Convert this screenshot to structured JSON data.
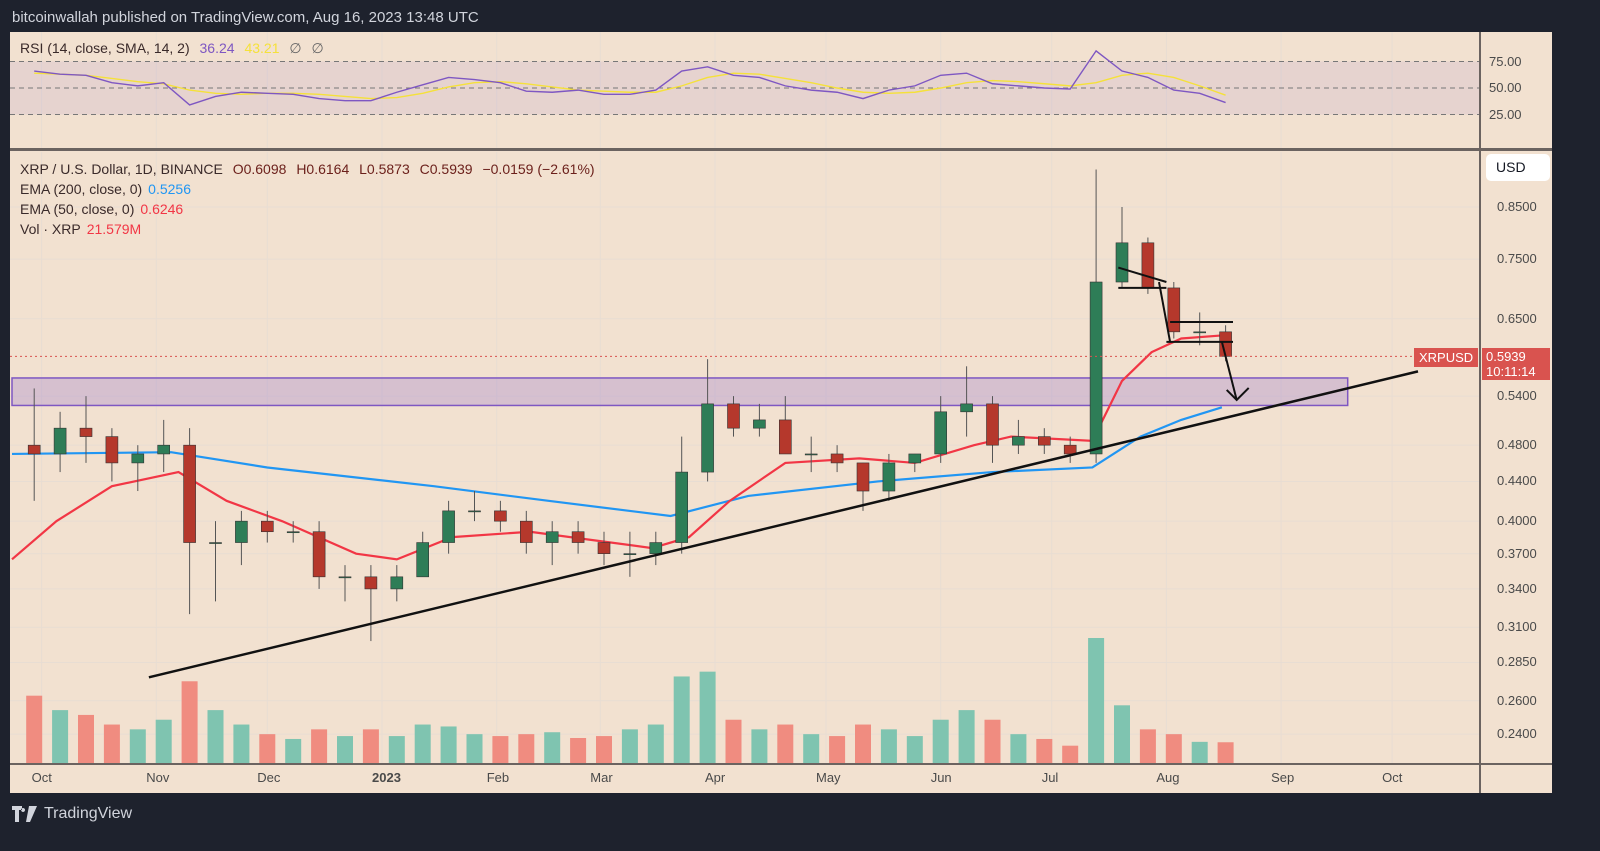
{
  "header": {
    "published": "bitcoinwallah published on TradingView.com, Aug 16, 2023 13:48 UTC"
  },
  "rsi_legend": {
    "label": "RSI (14, close, SMA, 14, 2)",
    "value": "36.24",
    "sma": "43.21",
    "extra1": "∅",
    "extra2": "∅"
  },
  "main_legend": {
    "symbol": "XRP / U.S. Dollar, 1D, BINANCE",
    "open": "O0.6098",
    "high": "H0.6164",
    "low": "L0.5873",
    "close": "C0.5939",
    "change": "−0.0159 (−2.61%)",
    "ema200_label": "EMA (200, close, 0)",
    "ema200_value": "0.5256",
    "ema50_label": "EMA (50, close, 0)",
    "ema50_value": "0.6246",
    "vol_label": "Vol · XRP",
    "vol_value": "21.579M"
  },
  "currency_button": "USD",
  "price_tag": {
    "symbol": "XRPUSD",
    "price": "0.5939",
    "countdown": "10:11:14"
  },
  "branding": "TradingView",
  "colors": {
    "up": "#2e7d57",
    "down": "#b5382c",
    "vol_up": "#7fc4b0",
    "vol_down": "#f08c80",
    "ema200": "#2196f3",
    "ema50": "#f23645",
    "rsi": "#7e57c2",
    "rsi_sma": "#f5e13a",
    "zone": "#9575cd",
    "background": "#f2e1d0"
  },
  "chart_data": {
    "type": "candlestick",
    "interval_shown": "1D",
    "y_scale": "log",
    "grid": true,
    "ylim": [
      0.225,
      0.95
    ],
    "y_ticks": [
      "0.8500",
      "0.7500",
      "0.6500",
      "0.5400",
      "0.4800",
      "0.4400",
      "0.4000",
      "0.3700",
      "0.3400",
      "0.3100",
      "0.2850",
      "0.2600",
      "0.2400"
    ],
    "x_ticks": [
      {
        "label": "Oct",
        "date": "2022-10-01"
      },
      {
        "label": "Nov",
        "date": "2022-11-01"
      },
      {
        "label": "Dec",
        "date": "2022-12-01"
      },
      {
        "label": "2023",
        "date": "2023-01-01"
      },
      {
        "label": "Feb",
        "date": "2023-02-01"
      },
      {
        "label": "Mar",
        "date": "2023-03-01"
      },
      {
        "label": "Apr",
        "date": "2023-04-01"
      },
      {
        "label": "May",
        "date": "2023-05-01"
      },
      {
        "label": "Jun",
        "date": "2023-06-01"
      },
      {
        "label": "Jul",
        "date": "2023-07-01"
      },
      {
        "label": "Aug",
        "date": "2023-08-01"
      },
      {
        "label": "Sep",
        "date": "2023-09-01"
      },
      {
        "label": "Oct",
        "date": "2023-10-01"
      }
    ],
    "candles_weekly_approx": [
      [
        "2022-09-26",
        0.48,
        0.55,
        0.42,
        0.47,
        70
      ],
      [
        "2022-10-03",
        0.47,
        0.52,
        0.45,
        0.5,
        55
      ],
      [
        "2022-10-10",
        0.5,
        0.54,
        0.46,
        0.49,
        50
      ],
      [
        "2022-10-17",
        0.49,
        0.5,
        0.44,
        0.46,
        40
      ],
      [
        "2022-10-24",
        0.46,
        0.48,
        0.43,
        0.47,
        35
      ],
      [
        "2022-10-31",
        0.47,
        0.51,
        0.45,
        0.48,
        45
      ],
      [
        "2022-11-07",
        0.48,
        0.5,
        0.32,
        0.38,
        85
      ],
      [
        "2022-11-14",
        0.38,
        0.4,
        0.33,
        0.38,
        55
      ],
      [
        "2022-11-21",
        0.38,
        0.41,
        0.36,
        0.4,
        40
      ],
      [
        "2022-11-28",
        0.4,
        0.41,
        0.38,
        0.39,
        30
      ],
      [
        "2022-12-05",
        0.39,
        0.4,
        0.38,
        0.39,
        25
      ],
      [
        "2022-12-12",
        0.39,
        0.4,
        0.34,
        0.35,
        35
      ],
      [
        "2022-12-19",
        0.35,
        0.36,
        0.33,
        0.35,
        28
      ],
      [
        "2022-12-26",
        0.35,
        0.36,
        0.3,
        0.34,
        35
      ],
      [
        "2023-01-02",
        0.34,
        0.36,
        0.33,
        0.35,
        28
      ],
      [
        "2023-01-09",
        0.35,
        0.39,
        0.35,
        0.38,
        40
      ],
      [
        "2023-01-16",
        0.38,
        0.42,
        0.37,
        0.41,
        38
      ],
      [
        "2023-01-23",
        0.41,
        0.43,
        0.4,
        0.41,
        30
      ],
      [
        "2023-01-30",
        0.41,
        0.42,
        0.39,
        0.4,
        28
      ],
      [
        "2023-02-06",
        0.4,
        0.41,
        0.37,
        0.38,
        30
      ],
      [
        "2023-02-13",
        0.38,
        0.4,
        0.36,
        0.39,
        32
      ],
      [
        "2023-02-20",
        0.39,
        0.4,
        0.37,
        0.38,
        26
      ],
      [
        "2023-02-27",
        0.38,
        0.39,
        0.36,
        0.37,
        28
      ],
      [
        "2023-03-06",
        0.37,
        0.39,
        0.35,
        0.37,
        35
      ],
      [
        "2023-03-13",
        0.37,
        0.39,
        0.36,
        0.38,
        40
      ],
      [
        "2023-03-20",
        0.38,
        0.49,
        0.37,
        0.45,
        90
      ],
      [
        "2023-03-27",
        0.45,
        0.59,
        0.44,
        0.53,
        95
      ],
      [
        "2023-04-03",
        0.53,
        0.54,
        0.49,
        0.5,
        45
      ],
      [
        "2023-04-10",
        0.5,
        0.53,
        0.49,
        0.51,
        35
      ],
      [
        "2023-04-17",
        0.51,
        0.54,
        0.47,
        0.47,
        40
      ],
      [
        "2023-04-24",
        0.47,
        0.49,
        0.45,
        0.47,
        30
      ],
      [
        "2023-05-01",
        0.47,
        0.48,
        0.45,
        0.46,
        28
      ],
      [
        "2023-05-08",
        0.46,
        0.46,
        0.41,
        0.43,
        40
      ],
      [
        "2023-05-15",
        0.43,
        0.47,
        0.42,
        0.46,
        35
      ],
      [
        "2023-05-22",
        0.46,
        0.47,
        0.45,
        0.47,
        28
      ],
      [
        "2023-05-29",
        0.47,
        0.54,
        0.46,
        0.52,
        45
      ],
      [
        "2023-06-05",
        0.52,
        0.58,
        0.49,
        0.53,
        55
      ],
      [
        "2023-06-12",
        0.53,
        0.54,
        0.46,
        0.48,
        45
      ],
      [
        "2023-06-19",
        0.48,
        0.51,
        0.47,
        0.49,
        30
      ],
      [
        "2023-06-26",
        0.49,
        0.5,
        0.47,
        0.48,
        25
      ],
      [
        "2023-07-03",
        0.48,
        0.49,
        0.46,
        0.47,
        18
      ],
      [
        "2023-07-10",
        0.47,
        0.93,
        0.46,
        0.71,
        130
      ],
      [
        "2023-07-17",
        0.71,
        0.85,
        0.7,
        0.78,
        60
      ],
      [
        "2023-07-24",
        0.78,
        0.79,
        0.69,
        0.7,
        35
      ],
      [
        "2023-07-31",
        0.7,
        0.71,
        0.62,
        0.63,
        30
      ],
      [
        "2023-08-07",
        0.63,
        0.66,
        0.61,
        0.63,
        22
      ],
      [
        "2023-08-14",
        0.63,
        0.64,
        0.587,
        0.594,
        21.579
      ]
    ],
    "candle_fields": [
      "week",
      "open",
      "high",
      "low",
      "close",
      "volume_M"
    ],
    "ema200": [
      [
        "2022-09-23",
        0.47
      ],
      [
        "2022-11-05",
        0.472
      ],
      [
        "2022-12-01",
        0.455
      ],
      [
        "2023-01-15",
        0.435
      ],
      [
        "2023-02-15",
        0.42
      ],
      [
        "2023-03-20",
        0.405
      ],
      [
        "2023-04-10",
        0.425
      ],
      [
        "2023-05-15",
        0.44
      ],
      [
        "2023-06-15",
        0.45
      ],
      [
        "2023-07-12",
        0.455
      ],
      [
        "2023-07-25",
        0.49
      ],
      [
        "2023-08-05",
        0.51
      ],
      [
        "2023-08-16",
        0.5256
      ]
    ],
    "ema50": [
      [
        "2022-09-23",
        0.365
      ],
      [
        "2022-10-05",
        0.4
      ],
      [
        "2022-10-20",
        0.435
      ],
      [
        "2022-11-07",
        0.45
      ],
      [
        "2022-11-20",
        0.42
      ],
      [
        "2022-12-05",
        0.4
      ],
      [
        "2022-12-25",
        0.37
      ],
      [
        "2023-01-05",
        0.365
      ],
      [
        "2023-01-20",
        0.385
      ],
      [
        "2023-02-10",
        0.39
      ],
      [
        "2023-03-15",
        0.375
      ],
      [
        "2023-03-25",
        0.385
      ],
      [
        "2023-04-05",
        0.42
      ],
      [
        "2023-04-20",
        0.46
      ],
      [
        "2023-05-10",
        0.465
      ],
      [
        "2023-05-25",
        0.46
      ],
      [
        "2023-06-10",
        0.48
      ],
      [
        "2023-06-20",
        0.49
      ],
      [
        "2023-07-12",
        0.485
      ],
      [
        "2023-07-20",
        0.56
      ],
      [
        "2023-07-28",
        0.6
      ],
      [
        "2023-08-05",
        0.62
      ],
      [
        "2023-08-16",
        0.6246
      ]
    ],
    "last_price": 0.5939,
    "support_zone": {
      "from": "2022-09-23",
      "to": "2023-09-19",
      "low": 0.528,
      "high": 0.564
    },
    "trendline": [
      [
        "2022-10-30",
        0.275
      ],
      [
        "2023-10-08",
        0.573
      ]
    ],
    "drawings": [
      [
        [
          "2023-07-19",
          0.735
        ],
        [
          "2023-08-01",
          0.71
        ]
      ],
      [
        [
          "2023-07-19",
          0.7
        ],
        [
          "2023-08-01",
          0.7
        ]
      ],
      [
        [
          "2023-07-30",
          0.71
        ],
        [
          "2023-08-02",
          0.615
        ]
      ],
      [
        [
          "2023-08-02",
          0.645
        ],
        [
          "2023-08-19",
          0.645
        ]
      ],
      [
        [
          "2023-08-01",
          0.615
        ],
        [
          "2023-08-19",
          0.615
        ]
      ],
      [
        [
          "2023-08-16",
          0.615
        ],
        [
          "2023-08-20",
          0.535
        ]
      ]
    ],
    "rsi": {
      "levels": [
        75,
        50,
        25
      ],
      "y_ticks": [
        "75.00",
        "50.00",
        "25.00"
      ],
      "values": [
        66,
        63,
        62,
        55,
        52,
        55,
        34,
        42,
        46,
        45,
        44,
        40,
        38,
        38,
        46,
        53,
        60,
        58,
        55,
        47,
        46,
        48,
        44,
        44,
        48,
        66,
        70,
        62,
        60,
        52,
        48,
        46,
        40,
        48,
        52,
        62,
        64,
        54,
        52,
        50,
        49,
        85,
        66,
        60,
        48,
        45,
        36.24
      ],
      "sma": [
        64,
        63,
        62,
        59,
        56,
        54,
        48,
        45,
        44,
        45,
        45,
        44,
        42,
        40,
        41,
        45,
        51,
        55,
        56,
        54,
        51,
        48,
        47,
        46,
        46,
        52,
        60,
        64,
        63,
        59,
        55,
        50,
        46,
        45,
        46,
        50,
        55,
        57,
        56,
        54,
        52,
        55,
        62,
        64,
        60,
        52,
        43.21
      ]
    }
  }
}
